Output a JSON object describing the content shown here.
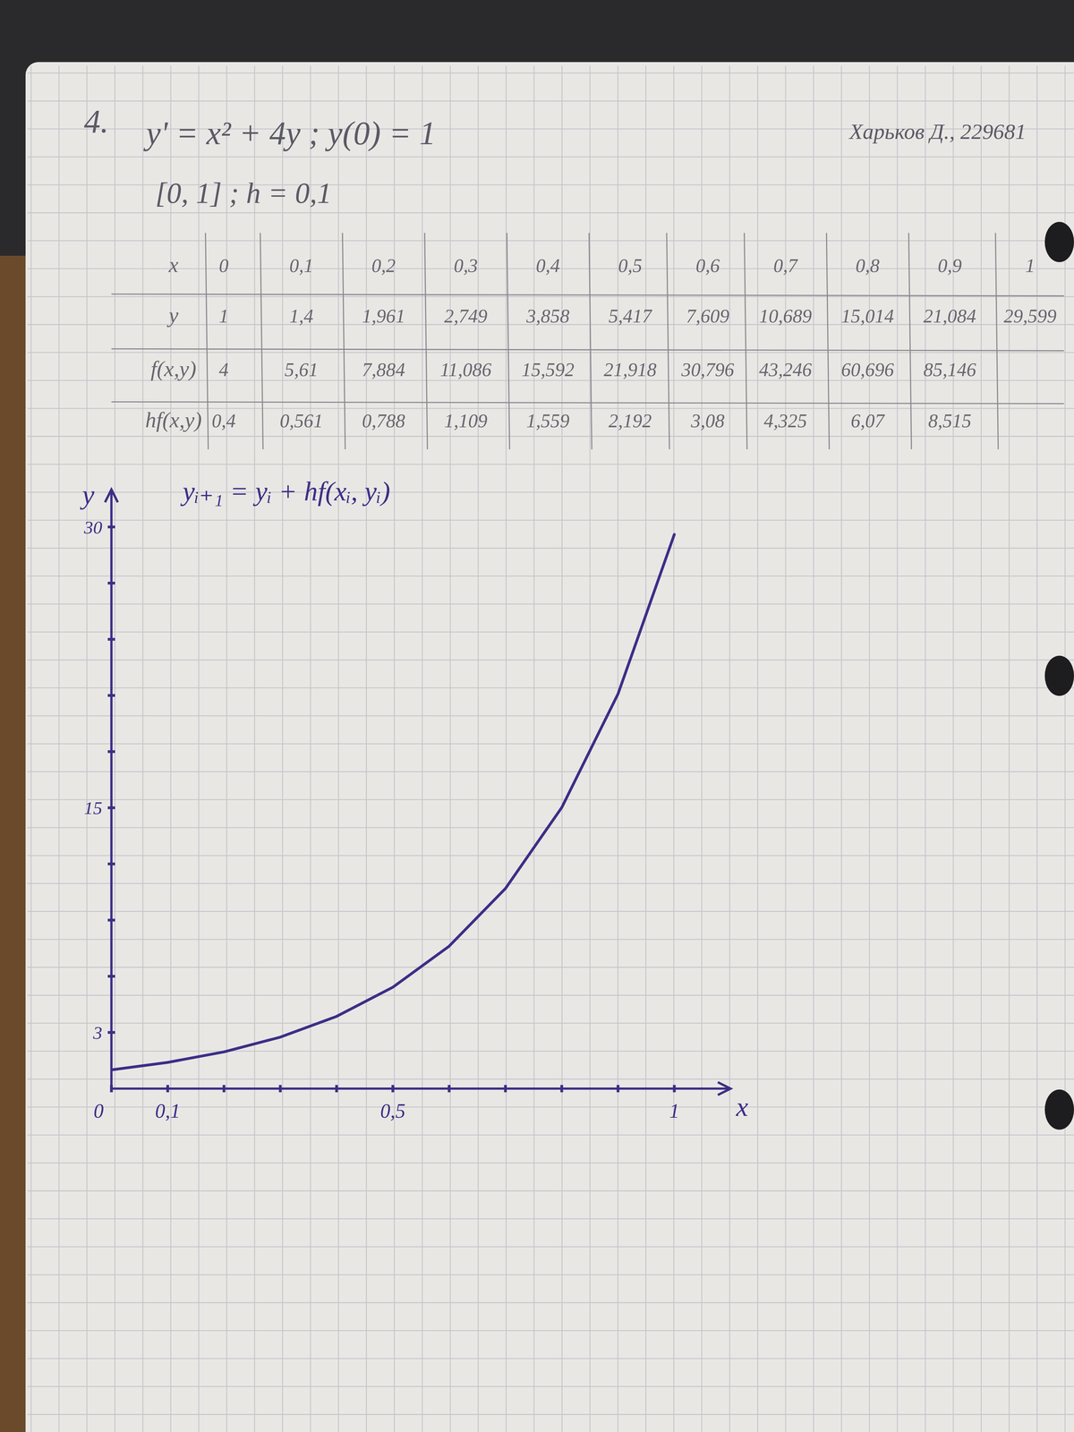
{
  "header": {
    "number": "4.",
    "equation": "y' = x² + 4y ; y(0) = 1",
    "interval": "[0, 1] ; h = 0,1",
    "author": "Харьков Д., 229681"
  },
  "table": {
    "rows": [
      [
        "x",
        "0",
        "0,1",
        "0,2",
        "0,3",
        "0,4",
        "0,5",
        "0,6",
        "0,7",
        "0,8",
        "0,9",
        "1"
      ],
      [
        "y",
        "1",
        "1,4",
        "1,961",
        "2,749",
        "3,858",
        "5,417",
        "7,609",
        "10,689",
        "15,014",
        "21,084",
        "29,599"
      ],
      [
        "f(x,y)",
        "4",
        "5,61",
        "7,884",
        "11,086",
        "15,592",
        "21,918",
        "30,796",
        "43,246",
        "60,696",
        "85,146"
      ],
      [
        "hf(x,y)",
        "0,4",
        "0,561",
        "0,788",
        "1,109",
        "1,559",
        "2,192",
        "3,08",
        "4,325",
        "6,07",
        "8,515"
      ]
    ]
  },
  "chart_data": {
    "type": "line",
    "annotation": "yᵢ₊₁ = yᵢ + hf(xᵢ, yᵢ)",
    "x_label": "x",
    "y_label": "y",
    "x": [
      0,
      0.1,
      0.2,
      0.3,
      0.4,
      0.5,
      0.6,
      0.7,
      0.8,
      0.9,
      1
    ],
    "values": [
      1,
      1.4,
      1.961,
      2.749,
      3.858,
      5.417,
      7.609,
      10.689,
      15.014,
      21.084,
      29.599
    ],
    "color": "#3b2f86",
    "xlim": [
      0,
      1.1
    ],
    "ylim": [
      0,
      32
    ],
    "xticks": [
      {
        "value": 0,
        "label": "0"
      },
      {
        "value": 0.1,
        "label": "0,1"
      },
      {
        "value": 0.2,
        "label": null
      },
      {
        "value": 0.3,
        "label": null
      },
      {
        "value": 0.4,
        "label": null
      },
      {
        "value": 0.5,
        "label": "0,5"
      },
      {
        "value": 0.6,
        "label": null
      },
      {
        "value": 0.7,
        "label": null
      },
      {
        "value": 0.8,
        "label": null
      },
      {
        "value": 0.9,
        "label": null
      },
      1
    ],
    "yticks": [
      3,
      {
        "value": 6,
        "label": null
      },
      {
        "value": 9,
        "label": null
      },
      {
        "value": 12,
        "label": null
      },
      15,
      {
        "value": 18,
        "label": null
      },
      {
        "value": 21,
        "label": null
      },
      {
        "value": 24,
        "label": null
      },
      {
        "value": 27,
        "label": null
      },
      30
    ]
  }
}
